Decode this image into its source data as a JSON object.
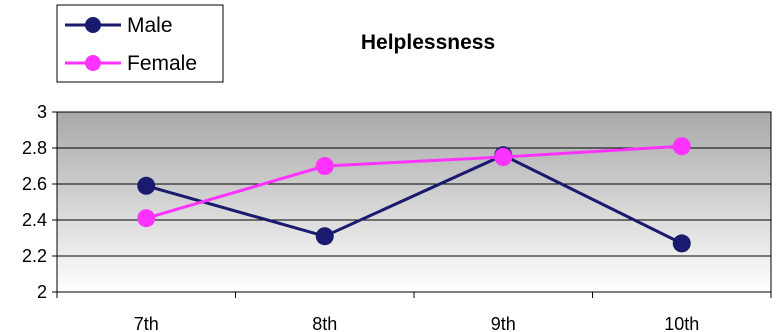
{
  "chart_data": {
    "type": "line",
    "title": "Helplessness",
    "xlabel": "",
    "ylabel": "",
    "categories": [
      "7th",
      "8th",
      "9th",
      "10th"
    ],
    "ylim": [
      2,
      3
    ],
    "yticks": [
      2,
      2.2,
      2.4,
      2.6,
      2.8,
      3
    ],
    "ytick_labels": [
      "2",
      "2.2",
      "2.4",
      "2.6",
      "2.8",
      "3"
    ],
    "grid": true,
    "legend_position": "top-left",
    "series": [
      {
        "name": "Male",
        "color": "#1a1a6e",
        "values": [
          2.59,
          2.31,
          2.76,
          2.27
        ]
      },
      {
        "name": "Female",
        "color": "#ff33ff",
        "values": [
          2.41,
          2.7,
          2.75,
          2.81
        ]
      }
    ]
  }
}
